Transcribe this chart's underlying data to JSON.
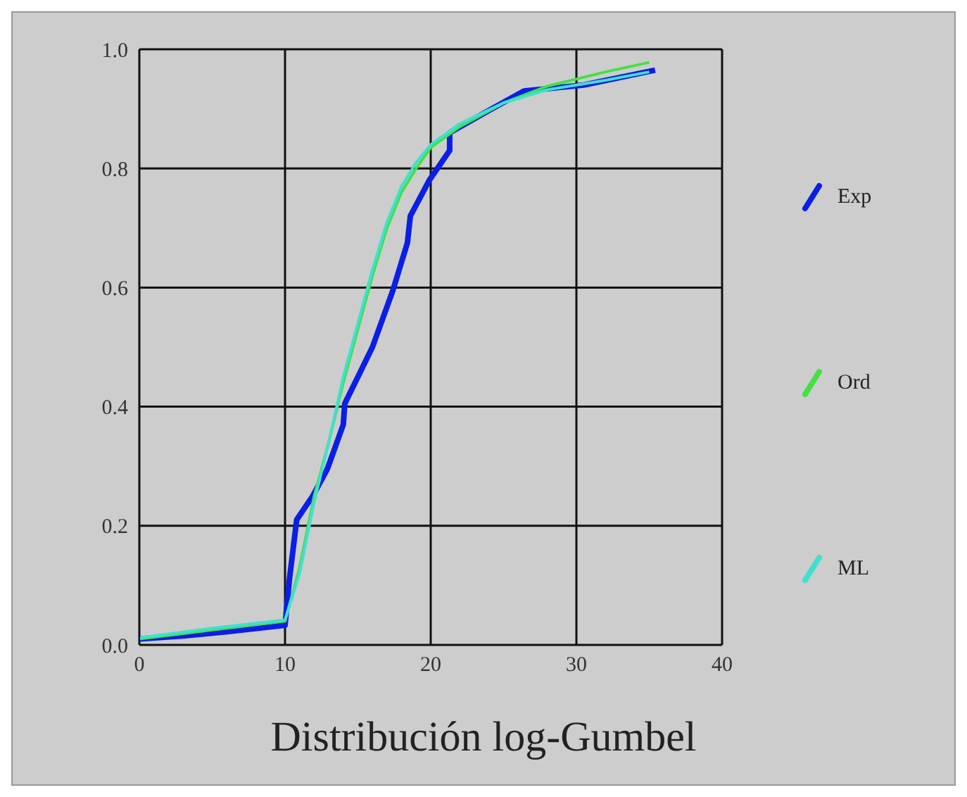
{
  "chart_data": {
    "type": "line",
    "title": "Distribución log-Gumbel",
    "xlim": [
      0,
      40
    ],
    "xticks": [
      0,
      10,
      20,
      30,
      40
    ],
    "ylim": [
      0,
      1
    ],
    "yticks": [
      {
        "value": 0,
        "label": "0.0"
      },
      0.2,
      0.4,
      0.6,
      0.8,
      {
        "value": 1,
        "label": "1.0"
      }
    ],
    "grid": true,
    "legend": "right",
    "marker": "none",
    "line_style": "solid",
    "series": [
      {
        "name": "Exp",
        "color": "#0a1ee6",
        "x": [
          0,
          3,
          6,
          10,
          10.3,
          10.8,
          11.9,
          12.9,
          14,
          14.1,
          16,
          17.4,
          18.4,
          18.6,
          19.9,
          21.3,
          21.3,
          24.2,
          26.4,
          30.5,
          35.4
        ],
        "values": [
          0.01,
          0.015,
          0.022,
          0.033,
          0.11,
          0.21,
          0.25,
          0.295,
          0.37,
          0.405,
          0.5,
          0.595,
          0.675,
          0.72,
          0.78,
          0.83,
          0.86,
          0.9,
          0.93,
          0.94,
          0.965
        ]
      },
      {
        "name": "Ord",
        "color": "#44e044",
        "x": [
          0,
          5,
          10,
          11,
          12,
          13,
          14,
          15,
          16,
          17,
          18,
          19,
          20,
          22,
          25,
          28,
          32,
          35
        ],
        "values": [
          0.01,
          0.025,
          0.04,
          0.13,
          0.25,
          0.34,
          0.44,
          0.53,
          0.62,
          0.7,
          0.76,
          0.8,
          0.835,
          0.87,
          0.91,
          0.938,
          0.962,
          0.978
        ]
      },
      {
        "name": "ML",
        "color": "#40e0d0",
        "x": [
          0,
          5,
          10,
          11,
          12,
          13,
          14,
          15,
          16,
          17,
          18,
          19,
          20,
          22,
          25,
          28,
          32,
          35
        ],
        "values": [
          0.012,
          0.028,
          0.042,
          0.12,
          0.24,
          0.34,
          0.45,
          0.54,
          0.63,
          0.71,
          0.77,
          0.81,
          0.84,
          0.875,
          0.91,
          0.932,
          0.948,
          0.962
        ]
      }
    ]
  }
}
